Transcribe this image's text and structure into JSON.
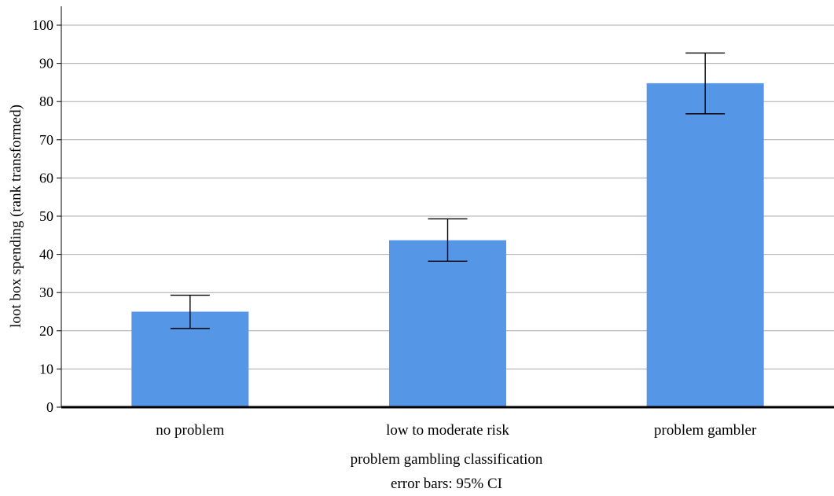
{
  "chart_data": {
    "type": "bar",
    "title": "",
    "xlabel": "problem gambling classification",
    "ylabel": "loot box spending (rank transformed)",
    "note": "error bars: 95% CI",
    "categories": [
      "no problem",
      "low to moderate risk",
      "problem gambler"
    ],
    "values": [
      25,
      43.7,
      84.8
    ],
    "error_low": [
      20.6,
      38.2,
      76.8
    ],
    "error_high": [
      29.3,
      49.3,
      92.7
    ],
    "ylim": [
      0,
      100
    ],
    "yticks": [
      0,
      10,
      20,
      30,
      40,
      50,
      60,
      70,
      80,
      90,
      100
    ],
    "grid": true,
    "bar_color": "#5596e6"
  }
}
